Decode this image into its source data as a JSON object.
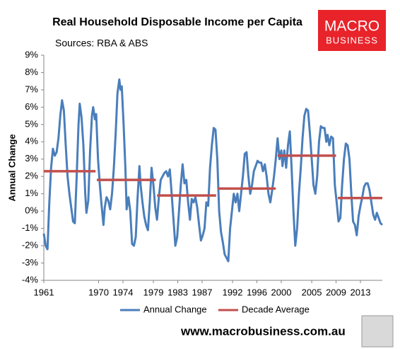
{
  "chart_data": {
    "type": "line",
    "title": "Real Household Disposable Income per Capita",
    "subtitle": "Sources: RBA & ABS",
    "y_label": "Annual Change",
    "logo_text": [
      "MACRO",
      "BUSINESS"
    ],
    "source_url": "www.macrobusiness.com.au",
    "xlim": [
      1961,
      2016.6
    ],
    "xticks": [
      1961,
      1970,
      1974,
      1979,
      1983,
      1987,
      1992,
      1996,
      2000,
      2005,
      2009,
      2013
    ],
    "ylim": [
      -4,
      9
    ],
    "yticks": [
      {
        "value": 9,
        "label": "9%"
      },
      {
        "value": 8,
        "label": "8%"
      },
      {
        "value": 7,
        "label": "7%"
      },
      {
        "value": 6,
        "label": "6%"
      },
      {
        "value": 5,
        "label": "5%"
      },
      {
        "value": 4,
        "label": "4%"
      },
      {
        "value": 3,
        "label": "3%"
      },
      {
        "value": 2,
        "label": "2%"
      },
      {
        "value": 1,
        "label": "1%"
      },
      {
        "value": 0,
        "label": "0%"
      },
      {
        "value": -1,
        "label": "-1%"
      },
      {
        "value": -2,
        "label": "-2%"
      },
      {
        "value": -3,
        "label": "-3%"
      },
      {
        "value": -4,
        "label": "-4%"
      }
    ],
    "legend": "bottom",
    "x": [
      1961.0,
      1961.3,
      1961.6,
      1961.9,
      1962.2,
      1962.5,
      1962.8,
      1963.1,
      1963.4,
      1963.7,
      1964.0,
      1964.3,
      1964.6,
      1964.9,
      1965.2,
      1965.5,
      1965.8,
      1966.1,
      1966.4,
      1966.7,
      1966.9,
      1967.2,
      1967.5,
      1967.8,
      1968.0,
      1968.3,
      1968.6,
      1968.9,
      1969.1,
      1969.4,
      1969.6,
      1969.9,
      1970.2,
      1970.5,
      1970.8,
      1971.0,
      1971.3,
      1971.6,
      1971.9,
      1972.2,
      1972.5,
      1972.8,
      1973.1,
      1973.4,
      1973.6,
      1973.8,
      1974.1,
      1974.4,
      1974.6,
      1974.9,
      1975.2,
      1975.5,
      1975.8,
      1976.1,
      1976.4,
      1976.7,
      1976.9,
      1977.2,
      1977.5,
      1977.8,
      1978.1,
      1978.4,
      1978.7,
      1979.0,
      1979.3,
      1979.6,
      1979.9,
      1980.2,
      1980.5,
      1980.8,
      1981.1,
      1981.4,
      1981.7,
      1982.0,
      1982.3,
      1982.6,
      1982.9,
      1983.2,
      1983.5,
      1983.8,
      1984.1,
      1984.4,
      1984.7,
      1985.0,
      1985.3,
      1985.6,
      1985.9,
      1986.2,
      1986.5,
      1986.8,
      1987.1,
      1987.4,
      1987.7,
      1988.0,
      1988.3,
      1988.6,
      1988.9,
      1989.2,
      1989.5,
      1989.8,
      1990.1,
      1990.4,
      1990.7,
      1991.0,
      1991.3,
      1991.6,
      1991.9,
      1992.2,
      1992.5,
      1992.8,
      1993.1,
      1993.4,
      1993.7,
      1994.0,
      1994.3,
      1994.6,
      1994.9,
      1995.2,
      1995.5,
      1995.8,
      1996.1,
      1996.4,
      1996.7,
      1997.0,
      1997.3,
      1997.6,
      1997.9,
      1998.2,
      1998.5,
      1998.8,
      1999.1,
      1999.4,
      1999.7,
      2000.0,
      2000.2,
      2000.5,
      2000.8,
      2001.1,
      2001.4,
      2001.7,
      2002.0,
      2002.3,
      2002.6,
      2002.9,
      2003.2,
      2003.5,
      2003.8,
      2004.1,
      2004.4,
      2004.7,
      2005.0,
      2005.3,
      2005.6,
      2005.9,
      2006.2,
      2006.5,
      2006.8,
      2007.1,
      2007.4,
      2007.6,
      2007.9,
      2008.2,
      2008.5,
      2008.8,
      2009.1,
      2009.4,
      2009.7,
      2010.0,
      2010.3,
      2010.6,
      2010.9,
      2011.2,
      2011.5,
      2011.8,
      2012.1,
      2012.4,
      2012.7,
      2013.0,
      2013.3,
      2013.6,
      2013.9,
      2014.2,
      2014.5,
      2014.8,
      2015.1,
      2015.4,
      2015.7,
      2016.0,
      2016.3,
      2016.6
    ],
    "series": [
      {
        "name": "Annual Change",
        "color": "#4a7ebb",
        "values": [
          -1.3,
          -2.0,
          -2.2,
          0.5,
          2.5,
          3.6,
          3.2,
          3.4,
          4.2,
          5.5,
          6.4,
          5.8,
          3.8,
          2.0,
          1.0,
          0.2,
          -0.6,
          -0.7,
          2.0,
          5.0,
          6.2,
          5.4,
          3.8,
          1.0,
          -0.1,
          0.6,
          3.5,
          5.5,
          6.0,
          5.3,
          5.6,
          3.0,
          1.5,
          0.3,
          -0.8,
          0.2,
          0.8,
          0.6,
          0.1,
          1.0,
          2.5,
          4.5,
          6.8,
          7.6,
          7.0,
          7.2,
          5.0,
          2.5,
          0.1,
          0.8,
          0.0,
          -1.9,
          -2.0,
          -1.5,
          0.8,
          2.6,
          1.5,
          0.5,
          -0.3,
          -0.8,
          -1.1,
          0.5,
          2.5,
          1.5,
          0.2,
          -0.5,
          0.8,
          1.8,
          2.0,
          2.2,
          2.3,
          2.0,
          2.4,
          1.0,
          -0.5,
          -2.0,
          -1.5,
          0.0,
          1.5,
          2.7,
          1.6,
          1.8,
          0.5,
          -0.5,
          0.7,
          0.5,
          0.8,
          0.2,
          -0.8,
          -1.7,
          -1.4,
          -1.0,
          0.5,
          0.3,
          2.5,
          3.8,
          4.8,
          4.7,
          3.0,
          0.0,
          -1.2,
          -1.8,
          -2.5,
          -2.7,
          -2.9,
          -1.0,
          0.0,
          1.0,
          0.5,
          1.0,
          0.0,
          1.0,
          2.0,
          3.3,
          3.4,
          2.0,
          1.0,
          1.5,
          2.3,
          2.6,
          2.9,
          2.8,
          2.8,
          2.3,
          2.7,
          2.0,
          1.0,
          0.5,
          1.2,
          2.0,
          3.0,
          4.2,
          3.0,
          3.5,
          2.6,
          3.5,
          2.5,
          3.8,
          4.6,
          2.5,
          0.0,
          -2.0,
          -1.0,
          1.0,
          2.5,
          4.2,
          5.5,
          5.9,
          5.8,
          4.5,
          3.0,
          1.5,
          1.0,
          2.0,
          4.0,
          4.9,
          4.8,
          4.8,
          4.0,
          4.4,
          3.8,
          4.3,
          4.2,
          1.5,
          0.5,
          -0.6,
          -0.4,
          1.5,
          3.0,
          3.9,
          3.8,
          3.0,
          1.0,
          -0.6,
          -0.8,
          -1.4,
          -0.3,
          0.3,
          0.8,
          1.4,
          1.6,
          1.6,
          1.2,
          0.5,
          -0.2,
          -0.5,
          -0.1,
          -0.4,
          -0.7,
          -0.8
        ]
      },
      {
        "name": "Decade Average",
        "color": "#c0504d",
        "x": [
          1961,
          1969.5,
          1969.6,
          1969.7,
          1979.4,
          1979.5,
          1979.6,
          1989.3,
          1989.4,
          1989.5,
          1999.1,
          1999.25,
          1999.4,
          2009.0,
          2009.15,
          2009.3,
          2016.6
        ],
        "values": [
          2.3,
          2.3,
          null,
          1.8,
          1.8,
          null,
          0.9,
          0.9,
          null,
          1.3,
          1.3,
          null,
          3.2,
          3.2,
          null,
          0.75,
          0.75
        ]
      }
    ]
  }
}
